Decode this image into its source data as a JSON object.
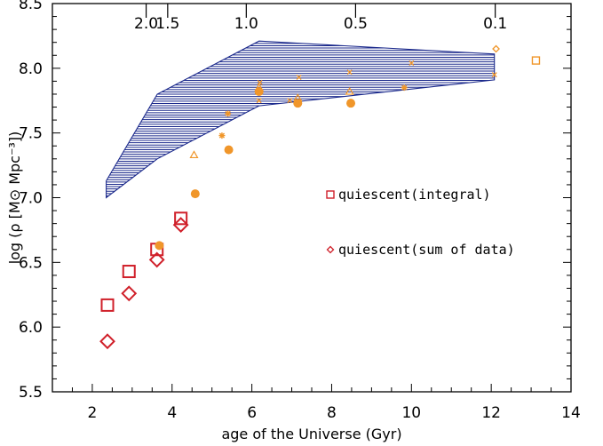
{
  "chart_data": {
    "type": "scatter",
    "xlabel": "age of the Universe (Gyr)",
    "ylabel": "log (ρ [M⊙ Mpc⁻³])",
    "xlim": [
      1,
      14
    ],
    "ylim": [
      5.5,
      8.5
    ],
    "x_ticks": [
      "2",
      "4",
      "6",
      "8",
      "10",
      "12",
      "14"
    ],
    "y_ticks": [
      "5.5",
      "6.0",
      "6.5",
      "7.0",
      "7.5",
      "8.0",
      "8.5"
    ],
    "top_axis": {
      "title": "",
      "ticks": [
        {
          "label": "2.0",
          "x": 3.35
        },
        {
          "label": "1.5",
          "x": 3.89
        },
        {
          "label": "1.0",
          "x": 5.86
        },
        {
          "label": "0.5",
          "x": 8.6
        },
        {
          "label": "0.1",
          "x": 12.1
        }
      ]
    },
    "shaded_region": {
      "color": "#1c2a8c",
      "upper": [
        [
          2.35,
          7.13
        ],
        [
          3.63,
          7.8
        ],
        [
          6.18,
          8.21
        ],
        [
          12.08,
          8.11
        ]
      ],
      "lower": [
        [
          2.35,
          7.0
        ],
        [
          3.63,
          7.3
        ],
        [
          6.18,
          7.71
        ],
        [
          12.08,
          7.91
        ]
      ]
    },
    "series": [
      {
        "name": "quiescent(integral)",
        "marker": "square",
        "color": "#d0202a",
        "size": "large",
        "points": [
          [
            2.38,
            6.17
          ],
          [
            2.92,
            6.43
          ],
          [
            3.62,
            6.6
          ],
          [
            4.22,
            6.84
          ]
        ]
      },
      {
        "name": "quiescent(sum of data)",
        "marker": "diamond",
        "color": "#d0202a",
        "size": "large",
        "points": [
          [
            2.38,
            5.89
          ],
          [
            2.92,
            6.26
          ],
          [
            3.62,
            6.52
          ],
          [
            4.22,
            6.79
          ]
        ]
      },
      {
        "marker": "circle",
        "color": "#f0962a",
        "points": [
          [
            3.68,
            6.63
          ],
          [
            4.58,
            7.03
          ],
          [
            5.42,
            7.37
          ],
          [
            6.18,
            7.82
          ],
          [
            7.15,
            7.73
          ],
          [
            8.48,
            7.73
          ]
        ]
      },
      {
        "marker": "triangle",
        "color": "#f0962a",
        "points": [
          [
            4.55,
            7.33
          ],
          [
            6.18,
            7.85
          ],
          [
            7.15,
            7.77
          ],
          [
            8.45,
            7.82
          ]
        ]
      },
      {
        "marker": "asterisk",
        "color": "#f0962a",
        "points": [
          [
            5.25,
            7.48
          ],
          [
            5.4,
            7.65
          ],
          [
            9.82,
            7.85
          ]
        ]
      },
      {
        "marker": "x",
        "color": "#f0962a",
        "points": [
          [
            6.18,
            7.75
          ],
          [
            6.2,
            7.89
          ],
          [
            7.18,
            7.93
          ],
          [
            6.95,
            7.75
          ],
          [
            8.45,
            7.97
          ],
          [
            10.0,
            8.04
          ],
          [
            12.08,
            7.95
          ]
        ]
      },
      {
        "marker": "small-diamond",
        "color": "#f0962a",
        "points": [
          [
            12.12,
            8.15
          ]
        ]
      },
      {
        "marker": "open-square",
        "color": "#f0962a",
        "points": [
          [
            13.12,
            8.06
          ]
        ]
      }
    ],
    "legend": {
      "placement": "center-right",
      "entries": [
        {
          "label": "quiescent(integral)",
          "marker": "square",
          "color": "#d0202a"
        },
        {
          "label": "quiescent(sum of data)",
          "marker": "diamond",
          "color": "#d0202a"
        }
      ]
    }
  }
}
